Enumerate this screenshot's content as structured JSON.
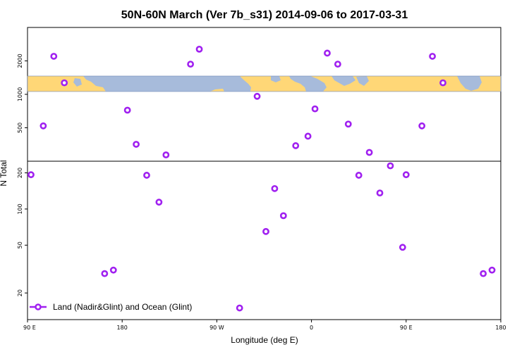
{
  "chart_data": {
    "type": "scatter",
    "title": "50N-60N March (Ver 7b_s31)   2014-09-06 to 2017-03-31",
    "xlabel": "Longitude (deg E)",
    "ylabel": "N Total",
    "xlim": [
      -90,
      180
    ],
    "x_ticks": [
      {
        "value": -90,
        "label": "90 E"
      },
      {
        "value": -36,
        "label": "180"
      },
      {
        "value": 18,
        "label": "90 W"
      },
      {
        "value": 72,
        "label": "0"
      },
      {
        "value": 126,
        "label": "90 E"
      },
      {
        "value": 180,
        "label": "180"
      }
    ],
    "upper_panel": {
      "scale": "log",
      "ylim": [
        250,
        4000
      ],
      "y_ticks": [
        {
          "value": 500,
          "label": "500"
        },
        {
          "value": 1000,
          "label": "1000"
        },
        {
          "value": 2000,
          "label": "2000"
        }
      ],
      "map_band_ylim": [
        1050,
        1550
      ]
    },
    "lower_panel": {
      "scale": "log",
      "ylim": [
        12,
        250
      ],
      "y_ticks": [
        {
          "value": 20,
          "label": "20"
        },
        {
          "value": 50,
          "label": "50"
        },
        {
          "value": 100,
          "label": "100"
        },
        {
          "value": 200,
          "label": "200"
        }
      ]
    },
    "legend": {
      "position": "bottom-left",
      "label": "Land (Nadir&Glint) and Ocean (Glint)"
    },
    "series": [
      {
        "name": "Land (Nadir&Glint) and Ocean (Glint)",
        "color": "#a020f0",
        "points": [
          {
            "x": -88,
            "y": 193
          },
          {
            "x": -81,
            "y": 520
          },
          {
            "x": -75,
            "y": 2200
          },
          {
            "x": -69,
            "y": 1270
          },
          {
            "x": -46,
            "y": 29
          },
          {
            "x": -41,
            "y": 31
          },
          {
            "x": -33,
            "y": 720
          },
          {
            "x": -28,
            "y": 355
          },
          {
            "x": -22,
            "y": 191
          },
          {
            "x": -15,
            "y": 114
          },
          {
            "x": -11,
            "y": 285
          },
          {
            "x": 3,
            "y": 1870
          },
          {
            "x": 8,
            "y": 2550
          },
          {
            "x": 31,
            "y": 15
          },
          {
            "x": 41,
            "y": 960
          },
          {
            "x": 46,
            "y": 65
          },
          {
            "x": 51,
            "y": 148
          },
          {
            "x": 56,
            "y": 88
          },
          {
            "x": 63,
            "y": 345
          },
          {
            "x": 70,
            "y": 420
          },
          {
            "x": 74,
            "y": 740
          },
          {
            "x": 81,
            "y": 2350
          },
          {
            "x": 87,
            "y": 1870
          },
          {
            "x": 93,
            "y": 540
          },
          {
            "x": 99,
            "y": 191
          },
          {
            "x": 105,
            "y": 300
          },
          {
            "x": 111,
            "y": 136
          },
          {
            "x": 117,
            "y": 229
          },
          {
            "x": 124,
            "y": 48
          },
          {
            "x": 126,
            "y": 193
          },
          {
            "x": 135,
            "y": 520
          },
          {
            "x": 141,
            "y": 2200
          },
          {
            "x": 147,
            "y": 1270
          },
          {
            "x": 170,
            "y": 29
          },
          {
            "x": 175,
            "y": 31
          }
        ]
      }
    ]
  }
}
